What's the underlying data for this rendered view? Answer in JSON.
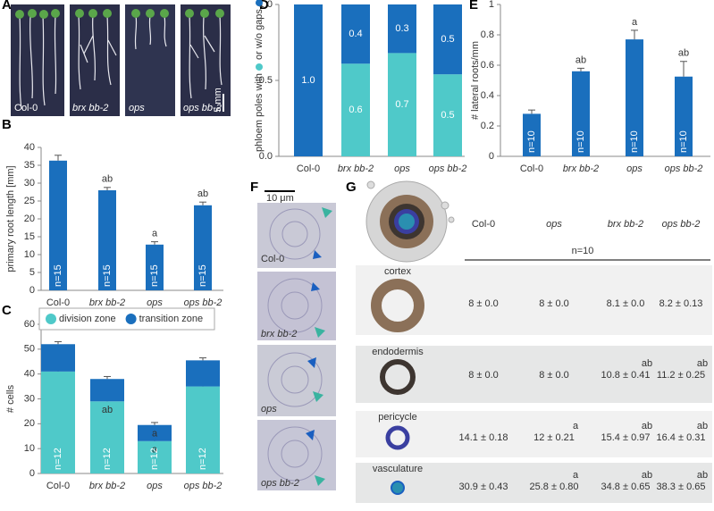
{
  "panel_labels": [
    "A",
    "B",
    "C",
    "D",
    "E",
    "F",
    "G"
  ],
  "panel_a": {
    "captions": [
      "Col-0",
      "brx bb-2",
      "ops",
      "ops bb-2"
    ],
    "scale_bar": "5 mm"
  },
  "chart_data": [
    {
      "type": "bar",
      "ylabel": "primary root length [mm]",
      "categories": [
        "Col-0",
        "brx bb-2",
        "ops",
        "ops bb-2"
      ],
      "values": [
        36.3,
        28.0,
        12.8,
        23.8
      ],
      "errors": [
        1.5,
        0.8,
        0.8,
        0.9
      ],
      "significance": [
        null,
        "ab",
        "a",
        "ab"
      ],
      "n_labels": [
        "n=15",
        "n=15",
        "n=15",
        "n=15"
      ],
      "color": "#1a6fbd",
      "ylim": [
        0,
        40
      ],
      "yticks": [
        0,
        5,
        10,
        15,
        20,
        25,
        30,
        35,
        40
      ]
    },
    {
      "type": "stacked_bar",
      "ylabel": "# cells",
      "categories": [
        "Col-0",
        "brx bb-2",
        "ops",
        "ops bb-2"
      ],
      "series": [
        {
          "name": "division zone",
          "color": "#4fc9c9",
          "values": [
            41,
            29,
            13,
            35
          ],
          "errors": [
            1,
            2,
            1,
            1
          ],
          "significance": [
            null,
            "ab",
            "a",
            null
          ]
        },
        {
          "name": "transition zone",
          "color": "#1a6fbd",
          "values": [
            11,
            9,
            6.5,
            10.5
          ],
          "errors": [
            1,
            1,
            1,
            1
          ],
          "significance": [
            null,
            null,
            "a",
            null
          ]
        }
      ],
      "n_labels": [
        "n=12",
        "n=12",
        "n=12",
        "n=12"
      ],
      "ylim": [
        0,
        60
      ],
      "yticks": [
        0,
        10,
        20,
        30,
        40,
        50,
        60
      ],
      "legend": "top"
    },
    {
      "type": "stacked_bar",
      "ylabel": [
        "phloem poles with",
        "or w/o gaps"
      ],
      "categories": [
        "Col-0",
        "brx bb-2",
        "ops",
        "ops bb-2"
      ],
      "series": [
        {
          "color": "#4fc9c9",
          "values": [
            0,
            0.61,
            0.68,
            0.54
          ],
          "value_labels": [
            null,
            "0.6",
            "0.7",
            "0.5"
          ]
        },
        {
          "color": "#1a6fbd",
          "values": [
            1.0,
            0.39,
            0.32,
            0.46
          ],
          "value_labels": [
            "1.0",
            "0.4",
            "0.3",
            "0.5"
          ]
        }
      ],
      "ylim": [
        0,
        1
      ],
      "yticks": [
        {
          "value": 0,
          "label": "0.0"
        },
        {
          "value": 0.5,
          "label": "0.5"
        },
        {
          "value": 1,
          "label": "1.0"
        }
      ]
    },
    {
      "type": "bar",
      "ylabel": "# lateral roots/mm",
      "categories": [
        "Col-0",
        "brx bb-2",
        "ops",
        "ops bb-2"
      ],
      "values": [
        0.28,
        0.56,
        0.77,
        0.525
      ],
      "errors": [
        0.025,
        0.02,
        0.06,
        0.1
      ],
      "significance": [
        null,
        "ab",
        "a",
        "ab"
      ],
      "n_labels": [
        "n=10",
        "n=10",
        "n=10",
        "n=10"
      ],
      "color": "#1a6fbd",
      "ylim": [
        0,
        1
      ],
      "yticks": [
        0,
        0.2,
        0.4,
        0.6,
        0.8,
        1
      ]
    }
  ],
  "panel_f": {
    "scale_bar": "10 μm",
    "captions": [
      "Col-0",
      "brx bb-2",
      "ops",
      "ops bb-2"
    ]
  },
  "panel_g": {
    "columns": [
      "Col-0",
      "ops",
      "brx bb-2",
      "ops bb-2"
    ],
    "n": "n=10",
    "rows": [
      {
        "label": "cortex",
        "values": [
          "8 ± 0.0",
          "8 ± 0.0",
          "8.1 ± 0.0",
          "8.2 ± 0.13"
        ],
        "significance": [
          null,
          null,
          null,
          null
        ]
      },
      {
        "label": "endodermis",
        "values": [
          "8 ± 0.0",
          "8 ± 0.0",
          "10.8 ± 0.41",
          "11.2 ± 0.25"
        ],
        "significance": [
          null,
          null,
          "ab",
          "ab"
        ]
      },
      {
        "label": "pericycle",
        "values": [
          "14.1 ± 0.18",
          "12 ± 0.21",
          "15.4 ± 0.97",
          "16.4 ± 0.31"
        ],
        "significance": [
          null,
          "a",
          "ab",
          "ab"
        ]
      },
      {
        "label": "vasculature",
        "values": [
          "30.9 ± 0.43",
          "25.8 ± 0.80",
          "34.8 ± 0.65",
          "38.3 ± 0.65"
        ],
        "significance": [
          null,
          "a",
          "ab",
          "ab"
        ]
      }
    ]
  }
}
